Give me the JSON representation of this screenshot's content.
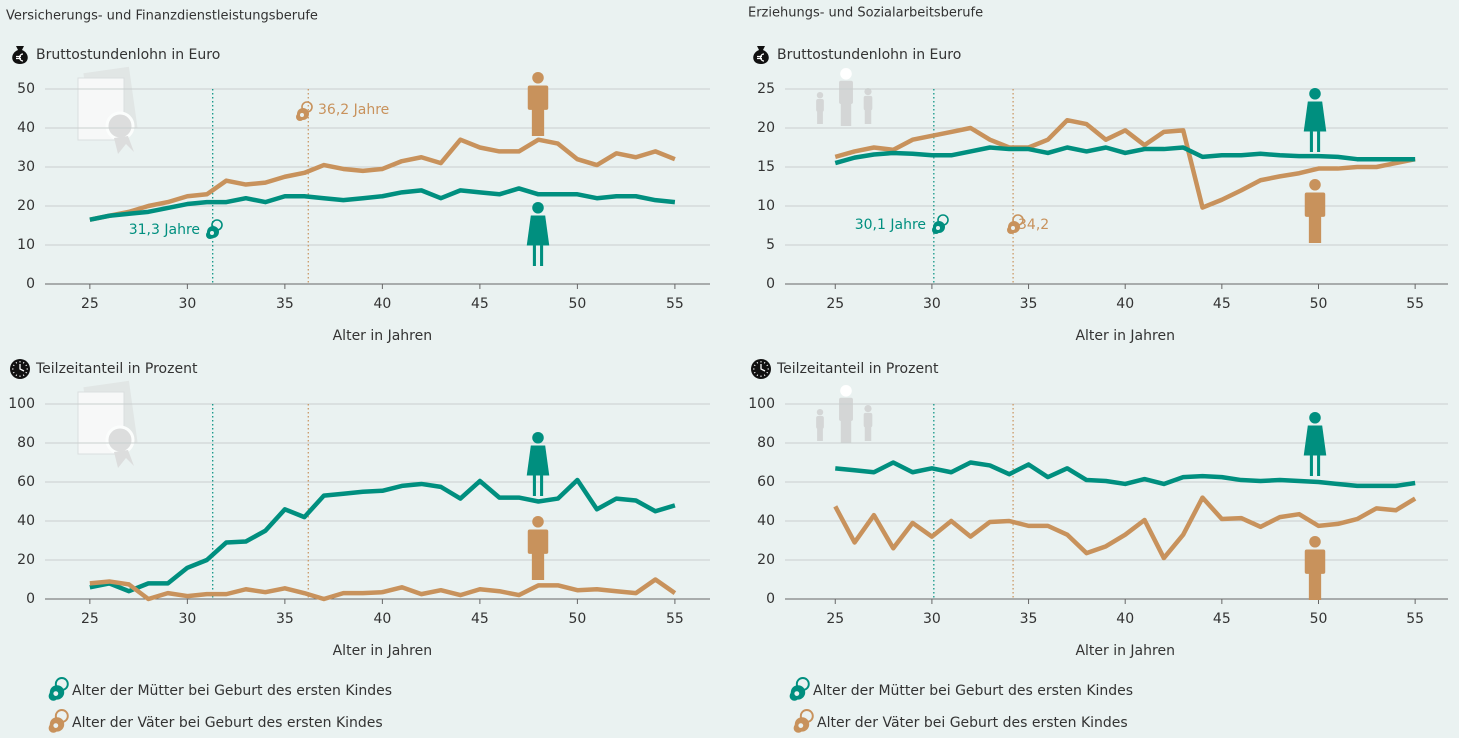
{
  "sections": [
    "Versicherungs- und Finanzdienstleistungsberufe",
    "Erziehungs- und Sozialarbeitsberufe"
  ],
  "legend": [
    "Alter der Mütter bei Geburt des ersten Kindes",
    "Alter der Väter bei Geburt des ersten Kindes"
  ],
  "chart_data": [
    {
      "type": "line",
      "y_label": "Bruttostundenlohn in Euro",
      "x_label": "Alter in Jahren",
      "x": [
        25,
        26,
        27,
        28,
        29,
        30,
        31,
        32,
        33,
        34,
        35,
        36,
        37,
        38,
        39,
        40,
        41,
        42,
        43,
        44,
        45,
        46,
        47,
        48,
        49,
        50,
        51,
        52,
        53,
        54,
        55
      ],
      "series": [
        {
          "color": "#c8925c",
          "values": [
            16.5,
            17.5,
            18.5,
            20,
            21,
            22.5,
            23,
            26.5,
            25.5,
            26,
            27.5,
            28.5,
            30.5,
            29.5,
            29,
            29.5,
            31.5,
            32.5,
            31,
            37,
            35,
            34,
            34,
            37,
            36,
            32,
            30.5,
            33.5,
            32.5,
            34,
            32
          ]
        },
        {
          "color": "#008f7f",
          "values": [
            16.5,
            17.5,
            18,
            18.5,
            19.5,
            20.5,
            21,
            21,
            22,
            21,
            22.5,
            22.5,
            22,
            21.5,
            22,
            22.5,
            23.5,
            24,
            22,
            24,
            23.5,
            23,
            24.5,
            23,
            23,
            23,
            22,
            22.5,
            22.5,
            21.5,
            21
          ]
        }
      ],
      "xlim": [
        22.7,
        56.8
      ],
      "xticks": [
        25,
        30,
        35,
        40,
        45,
        50,
        55
      ],
      "ylim": [
        0,
        50
      ],
      "yticks": [
        0,
        10,
        20,
        30,
        40,
        50
      ],
      "grid": true,
      "vlines": [
        {
          "value": 31.3,
          "label": "31,3 Jahre",
          "color": "#008f7f"
        },
        {
          "value": 36.2,
          "label": "36,2 Jahre",
          "color": "#c8925c"
        }
      ]
    },
    {
      "type": "line",
      "y_label": "Teilzeitanteil in Prozent",
      "x_label": "Alter in Jahren",
      "x": [
        25,
        26,
        27,
        28,
        29,
        30,
        31,
        32,
        33,
        34,
        35,
        36,
        37,
        38,
        39,
        40,
        41,
        42,
        43,
        44,
        45,
        46,
        47,
        48,
        49,
        50,
        51,
        52,
        53,
        54,
        55
      ],
      "series": [
        {
          "color": "#008f7f",
          "values": [
            6,
            8,
            4,
            8,
            8,
            16,
            20,
            29,
            29.5,
            35,
            46,
            42,
            53,
            54,
            55,
            55.5,
            58,
            59,
            57.5,
            51.5,
            60.5,
            52,
            52,
            50,
            51.5,
            61,
            46,
            51.5,
            50.5,
            45,
            48
          ]
        },
        {
          "color": "#c8925c",
          "values": [
            8,
            9,
            7.5,
            0,
            3,
            1.5,
            2.5,
            2.5,
            5,
            3.5,
            5.5,
            3,
            0,
            3,
            3,
            3.5,
            6,
            2.5,
            4.5,
            2,
            5,
            4,
            2,
            7,
            7,
            4.5,
            5,
            4,
            3,
            10,
            3
          ]
        }
      ],
      "xlim": [
        22.7,
        56.8
      ],
      "xticks": [
        25,
        30,
        35,
        40,
        45,
        50,
        55
      ],
      "ylim": [
        0,
        100
      ],
      "yticks": [
        0,
        20,
        40,
        60,
        80,
        100
      ],
      "grid": true,
      "vlines": [
        {
          "value": 31.3,
          "color": "#008f7f"
        },
        {
          "value": 36.2,
          "color": "#c8925c"
        }
      ]
    },
    {
      "type": "line",
      "y_label": "Bruttostundenlohn in Euro",
      "x_label": "Alter in Jahren",
      "x": [
        25,
        26,
        27,
        28,
        29,
        30,
        31,
        32,
        33,
        34,
        35,
        36,
        37,
        38,
        39,
        40,
        41,
        42,
        43,
        44,
        45,
        46,
        47,
        48,
        49,
        50,
        51,
        52,
        53,
        54,
        55
      ],
      "series": [
        {
          "color": "#c8925c",
          "values": [
            16.3,
            17,
            17.5,
            17.2,
            18.5,
            19,
            19.5,
            20,
            18.5,
            17.5,
            17.5,
            18.5,
            21,
            20.5,
            18.5,
            19.7,
            17.8,
            19.5,
            19.7,
            9.8,
            10.8,
            12,
            13.3,
            13.8,
            14.2,
            14.8,
            14.8,
            15,
            15,
            15.5,
            16
          ]
        },
        {
          "color": "#008f7f",
          "values": [
            15.5,
            16.2,
            16.6,
            16.8,
            16.7,
            16.5,
            16.5,
            17,
            17.5,
            17.3,
            17.3,
            16.8,
            17.5,
            17,
            17.5,
            16.8,
            17.3,
            17.3,
            17.5,
            16.3,
            16.5,
            16.5,
            16.7,
            16.5,
            16.4,
            16.4,
            16.3,
            16,
            16,
            16,
            16
          ]
        }
      ],
      "xlim": [
        22.4,
        56.7
      ],
      "xticks": [
        25,
        30,
        35,
        40,
        45,
        50,
        55
      ],
      "ylim": [
        0,
        25
      ],
      "yticks": [
        0,
        5,
        10,
        15,
        20,
        25
      ],
      "grid": true,
      "vlines": [
        {
          "value": 30.1,
          "label": "30,1 Jahre",
          "color": "#008f7f"
        },
        {
          "value": 34.2,
          "label": "34,2",
          "color": "#c8925c"
        }
      ]
    },
    {
      "type": "line",
      "y_label": "Teilzeitanteil in Prozent",
      "x_label": "Alter in Jahren",
      "x": [
        25,
        26,
        27,
        28,
        29,
        30,
        31,
        32,
        33,
        34,
        35,
        36,
        37,
        38,
        39,
        40,
        41,
        42,
        43,
        44,
        45,
        46,
        47,
        48,
        49,
        50,
        51,
        52,
        53,
        54,
        55
      ],
      "series": [
        {
          "color": "#008f7f",
          "values": [
            67,
            66,
            65,
            70,
            65,
            67,
            65,
            70,
            68.5,
            64,
            69,
            62.5,
            67,
            61,
            60.5,
            59,
            61.5,
            59,
            62.5,
            63,
            62.5,
            61,
            60.5,
            61,
            60.5,
            60,
            59,
            58,
            58,
            58,
            59.5
          ]
        },
        {
          "color": "#c8925c",
          "values": [
            47.5,
            29,
            43,
            26,
            39,
            32,
            40,
            32,
            39.5,
            40,
            37.5,
            37.5,
            33,
            23.5,
            27,
            33,
            40.5,
            21,
            33,
            52,
            41,
            41.5,
            37,
            42,
            43.5,
            37.5,
            38.5,
            41,
            46.5,
            45.5,
            51.5
          ]
        }
      ],
      "xlim": [
        22.4,
        56.7
      ],
      "xticks": [
        25,
        30,
        35,
        40,
        45,
        50,
        55
      ],
      "ylim": [
        0,
        100
      ],
      "yticks": [
        0,
        20,
        40,
        60,
        80,
        100
      ],
      "grid": true,
      "vlines": [
        {
          "value": 30.1,
          "color": "#008f7f"
        },
        {
          "value": 34.2,
          "color": "#c8925c"
        }
      ]
    }
  ]
}
